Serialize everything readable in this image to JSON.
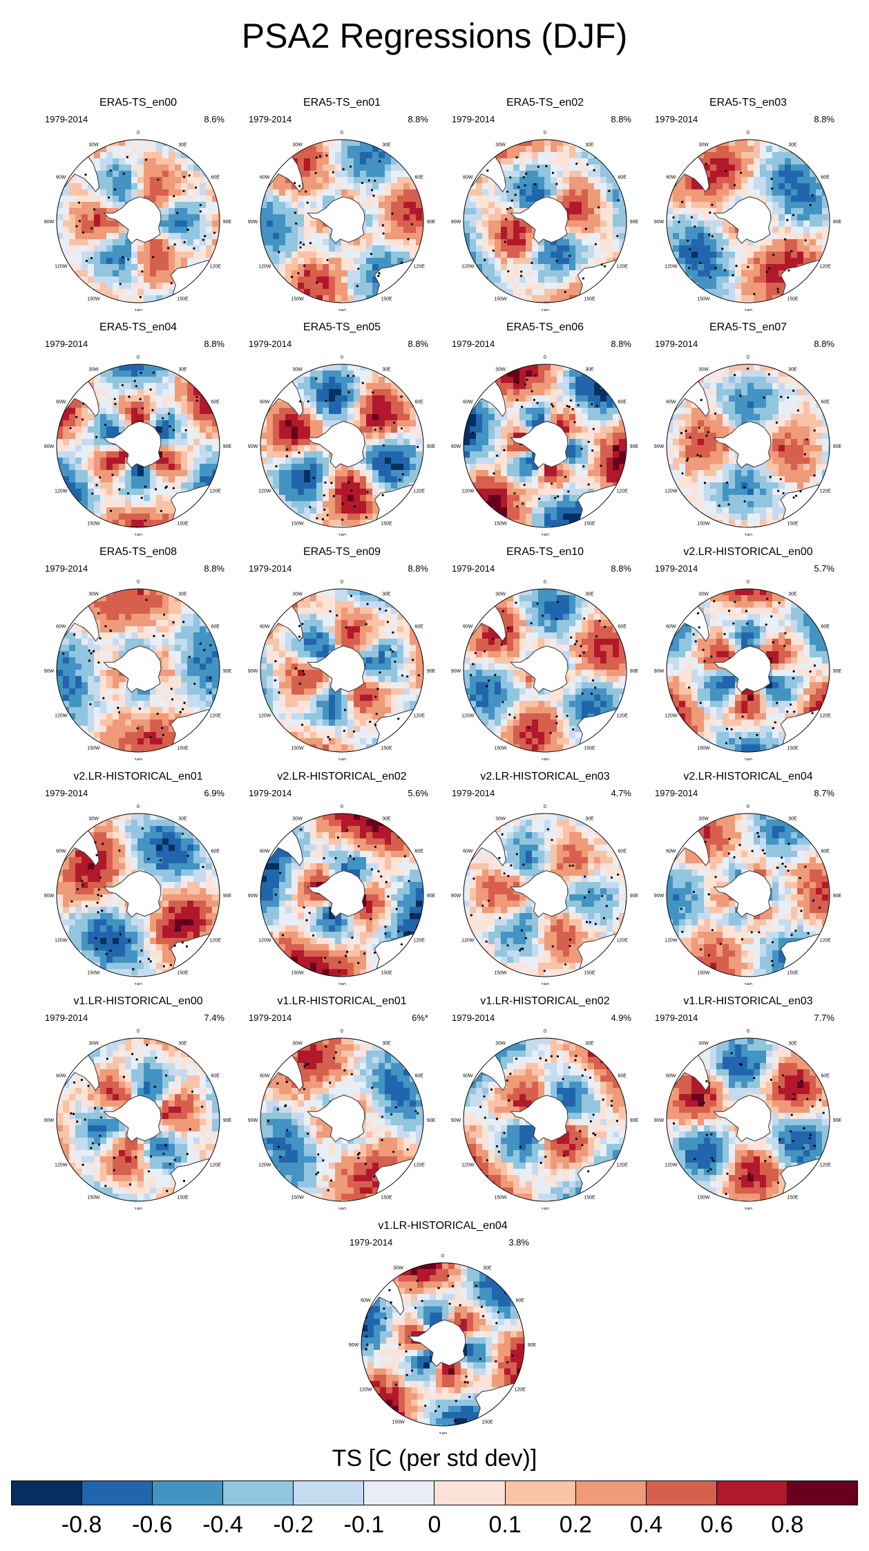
{
  "title": "PSA2 Regressions (DJF)",
  "chart_data": {
    "type": "heatmap",
    "description_title": "PSA2 Regressions (DJF)",
    "period": "1979-2014",
    "longitude_labels": [
      "0",
      "30E",
      "60E",
      "90E",
      "120E",
      "150E",
      "180",
      "150W",
      "120W",
      "90W",
      "60W",
      "30W"
    ],
    "panels": [
      {
        "name": "ERA5-TS_en00",
        "variance": "8.6%"
      },
      {
        "name": "ERA5-TS_en01",
        "variance": "8.8%"
      },
      {
        "name": "ERA5-TS_en02",
        "variance": "8.8%"
      },
      {
        "name": "ERA5-TS_en03",
        "variance": "8.8%"
      },
      {
        "name": "ERA5-TS_en04",
        "variance": "8.8%"
      },
      {
        "name": "ERA5-TS_en05",
        "variance": "8.8%"
      },
      {
        "name": "ERA5-TS_en06",
        "variance": "8.8%"
      },
      {
        "name": "ERA5-TS_en07",
        "variance": "8.8%"
      },
      {
        "name": "ERA5-TS_en08",
        "variance": "8.8%"
      },
      {
        "name": "ERA5-TS_en09",
        "variance": "8.8%"
      },
      {
        "name": "ERA5-TS_en10",
        "variance": "8.8%"
      },
      {
        "name": "v2.LR-HISTORICAL_en00",
        "variance": "5.7%"
      },
      {
        "name": "v2.LR-HISTORICAL_en01",
        "variance": "6.9%"
      },
      {
        "name": "v2.LR-HISTORICAL_en02",
        "variance": "5.6%"
      },
      {
        "name": "v2.LR-HISTORICAL_en03",
        "variance": "4.7%"
      },
      {
        "name": "v2.LR-HISTORICAL_en04",
        "variance": "8.7%"
      },
      {
        "name": "v1.LR-HISTORICAL_en00",
        "variance": "7.4%"
      },
      {
        "name": "v1.LR-HISTORICAL_en01",
        "variance": "6%*"
      },
      {
        "name": "v1.LR-HISTORICAL_en02",
        "variance": "4.9%"
      },
      {
        "name": "v1.LR-HISTORICAL_en03",
        "variance": "7.7%"
      },
      {
        "name": "v1.LR-HISTORICAL_en04",
        "variance": "3.8%"
      }
    ],
    "colorbar": {
      "title": "TS [C (per std dev)]",
      "labels": [
        "-0.8",
        "-0.6",
        "-0.4",
        "-0.2",
        "-0.1",
        "0",
        "0.1",
        "0.2",
        "0.4",
        "0.6",
        "0.8"
      ],
      "colors": [
        "#053061",
        "#2166ac",
        "#4393c3",
        "#92c5de",
        "#c6dbef",
        "#e8eef5",
        "#fbe3d8",
        "#f9c3a8",
        "#ef9a78",
        "#d6604d",
        "#b2182b",
        "#67001f"
      ]
    }
  }
}
